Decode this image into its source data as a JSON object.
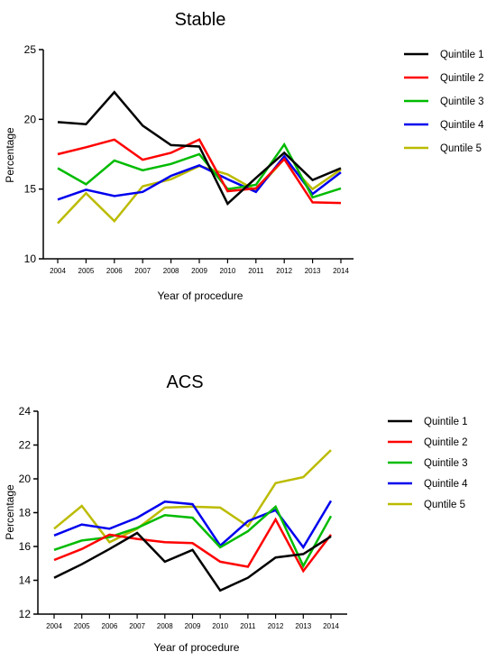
{
  "chart_data": [
    {
      "type": "line",
      "title": "Stable",
      "xlabel": "Year of procedure",
      "ylabel": "Percentage",
      "ylim": [
        10,
        25
      ],
      "yticks": [
        10,
        15,
        20,
        25
      ],
      "categories": [
        "2004",
        "2005",
        "2006",
        "2007",
        "2008",
        "2009",
        "2010",
        "2011",
        "2012",
        "2013",
        "2014"
      ],
      "legend_position": "right",
      "grid": false,
      "series": [
        {
          "name": "Quintile 1",
          "color": "#000000",
          "values": [
            19.8,
            19.65,
            21.95,
            19.55,
            18.15,
            18.05,
            13.95,
            15.8,
            17.6,
            15.65,
            16.5
          ]
        },
        {
          "name": "Quintile 2",
          "color": "#ff0000",
          "values": [
            17.5,
            18.0,
            18.55,
            17.1,
            17.6,
            18.55,
            14.85,
            15.05,
            17.15,
            14.05,
            14.0
          ]
        },
        {
          "name": "Quintile 3",
          "color": "#00bb00",
          "values": [
            16.5,
            15.35,
            17.05,
            16.35,
            16.8,
            17.5,
            15.0,
            15.3,
            18.2,
            14.4,
            15.05
          ]
        },
        {
          "name": "Quintile 4",
          "color": "#0000ee",
          "values": [
            14.25,
            14.95,
            14.5,
            14.8,
            15.95,
            16.7,
            15.7,
            14.8,
            17.35,
            14.65,
            16.2
          ]
        },
        {
          "name": "Quntile 5",
          "color": "#bbbb00",
          "values": [
            12.55,
            14.7,
            12.7,
            15.2,
            15.7,
            16.65,
            16.05,
            14.9,
            17.15,
            15.0,
            16.4
          ]
        }
      ]
    },
    {
      "type": "line",
      "title": "ACS",
      "xlabel": "Year of procedure",
      "ylabel": "Percentage",
      "ylim": [
        12,
        24
      ],
      "yticks": [
        12,
        14,
        16,
        18,
        20,
        22,
        24
      ],
      "categories": [
        "2004",
        "2005",
        "2006",
        "2007",
        "2008",
        "2009",
        "2010",
        "2011",
        "2012",
        "2013",
        "2014"
      ],
      "legend_position": "right",
      "grid": false,
      "series": [
        {
          "name": "Quintile 1",
          "color": "#000000",
          "values": [
            14.15,
            14.95,
            15.85,
            16.8,
            15.1,
            15.8,
            13.4,
            14.15,
            15.35,
            15.55,
            16.6
          ]
        },
        {
          "name": "Quintile 2",
          "color": "#ff0000",
          "values": [
            15.2,
            15.85,
            16.7,
            16.45,
            16.25,
            16.2,
            15.1,
            14.8,
            17.6,
            14.55,
            16.7
          ]
        },
        {
          "name": "Quintile 3",
          "color": "#00bb00",
          "values": [
            15.8,
            16.35,
            16.55,
            17.1,
            17.85,
            17.7,
            15.95,
            16.9,
            18.35,
            14.85,
            17.8
          ]
        },
        {
          "name": "Quintile 4",
          "color": "#0000ee",
          "values": [
            16.65,
            17.3,
            17.05,
            17.7,
            18.65,
            18.5,
            16.05,
            17.5,
            18.15,
            15.95,
            18.7
          ]
        },
        {
          "name": "Quntile 5",
          "color": "#bbbb00",
          "values": [
            17.05,
            18.4,
            16.25,
            17.05,
            18.3,
            18.35,
            18.3,
            17.2,
            19.75,
            20.1,
            21.7
          ]
        }
      ]
    }
  ]
}
